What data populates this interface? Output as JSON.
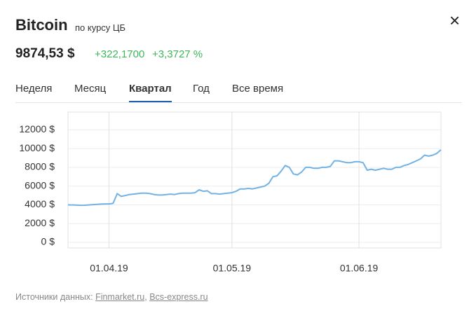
{
  "header": {
    "title": "Bitcoin",
    "subtitle": "по курсу ЦБ",
    "close": "×"
  },
  "quote": {
    "price": "9874,53 $",
    "change": "+322,1700",
    "change_percent": "+3,3727 %"
  },
  "tabs": {
    "items": [
      "Неделя",
      "Месяц",
      "Квартал",
      "Год",
      "Все время"
    ],
    "active": 2
  },
  "chart_data": {
    "type": "line",
    "categories": [
      null,
      null,
      null,
      null,
      null,
      null,
      null,
      null,
      null,
      null,
      "01.04.19",
      null,
      null,
      null,
      null,
      null,
      null,
      null,
      null,
      null,
      null,
      null,
      null,
      null,
      null,
      null,
      null,
      null,
      null,
      null,
      null,
      null,
      null,
      null,
      null,
      null,
      null,
      null,
      null,
      null,
      "01.05.19",
      null,
      null,
      null,
      null,
      null,
      null,
      null,
      null,
      null,
      null,
      null,
      null,
      null,
      null,
      null,
      null,
      null,
      null,
      null,
      null,
      null,
      null,
      null,
      null,
      null,
      null,
      null,
      null,
      null,
      null,
      "01.06.19",
      null,
      null,
      null,
      null,
      null,
      null,
      null,
      null,
      null,
      null,
      null,
      null,
      null,
      null,
      null,
      null,
      null,
      null,
      null,
      null
    ],
    "series": [
      {
        "name": "Bitcoin",
        "color": "#72b2e4",
        "values": [
          4000,
          3990,
          3980,
          3950,
          3960,
          3990,
          4020,
          4050,
          4080,
          4100,
          4100,
          4150,
          5200,
          4900,
          5000,
          5100,
          5150,
          5200,
          5250,
          5250,
          5200,
          5100,
          5050,
          5050,
          5100,
          5150,
          5100,
          5200,
          5250,
          5250,
          5250,
          5300,
          5600,
          5450,
          5500,
          5200,
          5200,
          5150,
          5200,
          5250,
          5300,
          5450,
          5700,
          5700,
          5750,
          5700,
          5800,
          5900,
          6000,
          6300,
          7000,
          7100,
          7600,
          8200,
          8000,
          7300,
          7200,
          7500,
          8000,
          8000,
          7900,
          7900,
          8000,
          8000,
          8100,
          8700,
          8700,
          8600,
          8500,
          8500,
          8600,
          8600,
          8500,
          7700,
          7800,
          7700,
          7800,
          7900,
          7800,
          7800,
          8000,
          8000,
          8200,
          8300,
          8500,
          8700,
          8900,
          9300,
          9200,
          9300,
          9500,
          9875
        ]
      }
    ],
    "ylim": [
      -600,
      13900
    ],
    "yticks": [
      {
        "value": 0,
        "label": "0 $"
      },
      {
        "value": 2000,
        "label": "2000 $"
      },
      {
        "value": 4000,
        "label": "4000 $"
      },
      {
        "value": 6000,
        "label": "6000 $"
      },
      {
        "value": 8000,
        "label": "8000 $"
      },
      {
        "value": 10000,
        "label": "10000 $"
      },
      {
        "value": 12000,
        "label": "12000 $"
      }
    ],
    "grid": true
  },
  "footer": {
    "label": "Источники данных:",
    "links": [
      "Finmarket.ru",
      "Bcs-express.ru"
    ],
    "link_separator": ","
  }
}
